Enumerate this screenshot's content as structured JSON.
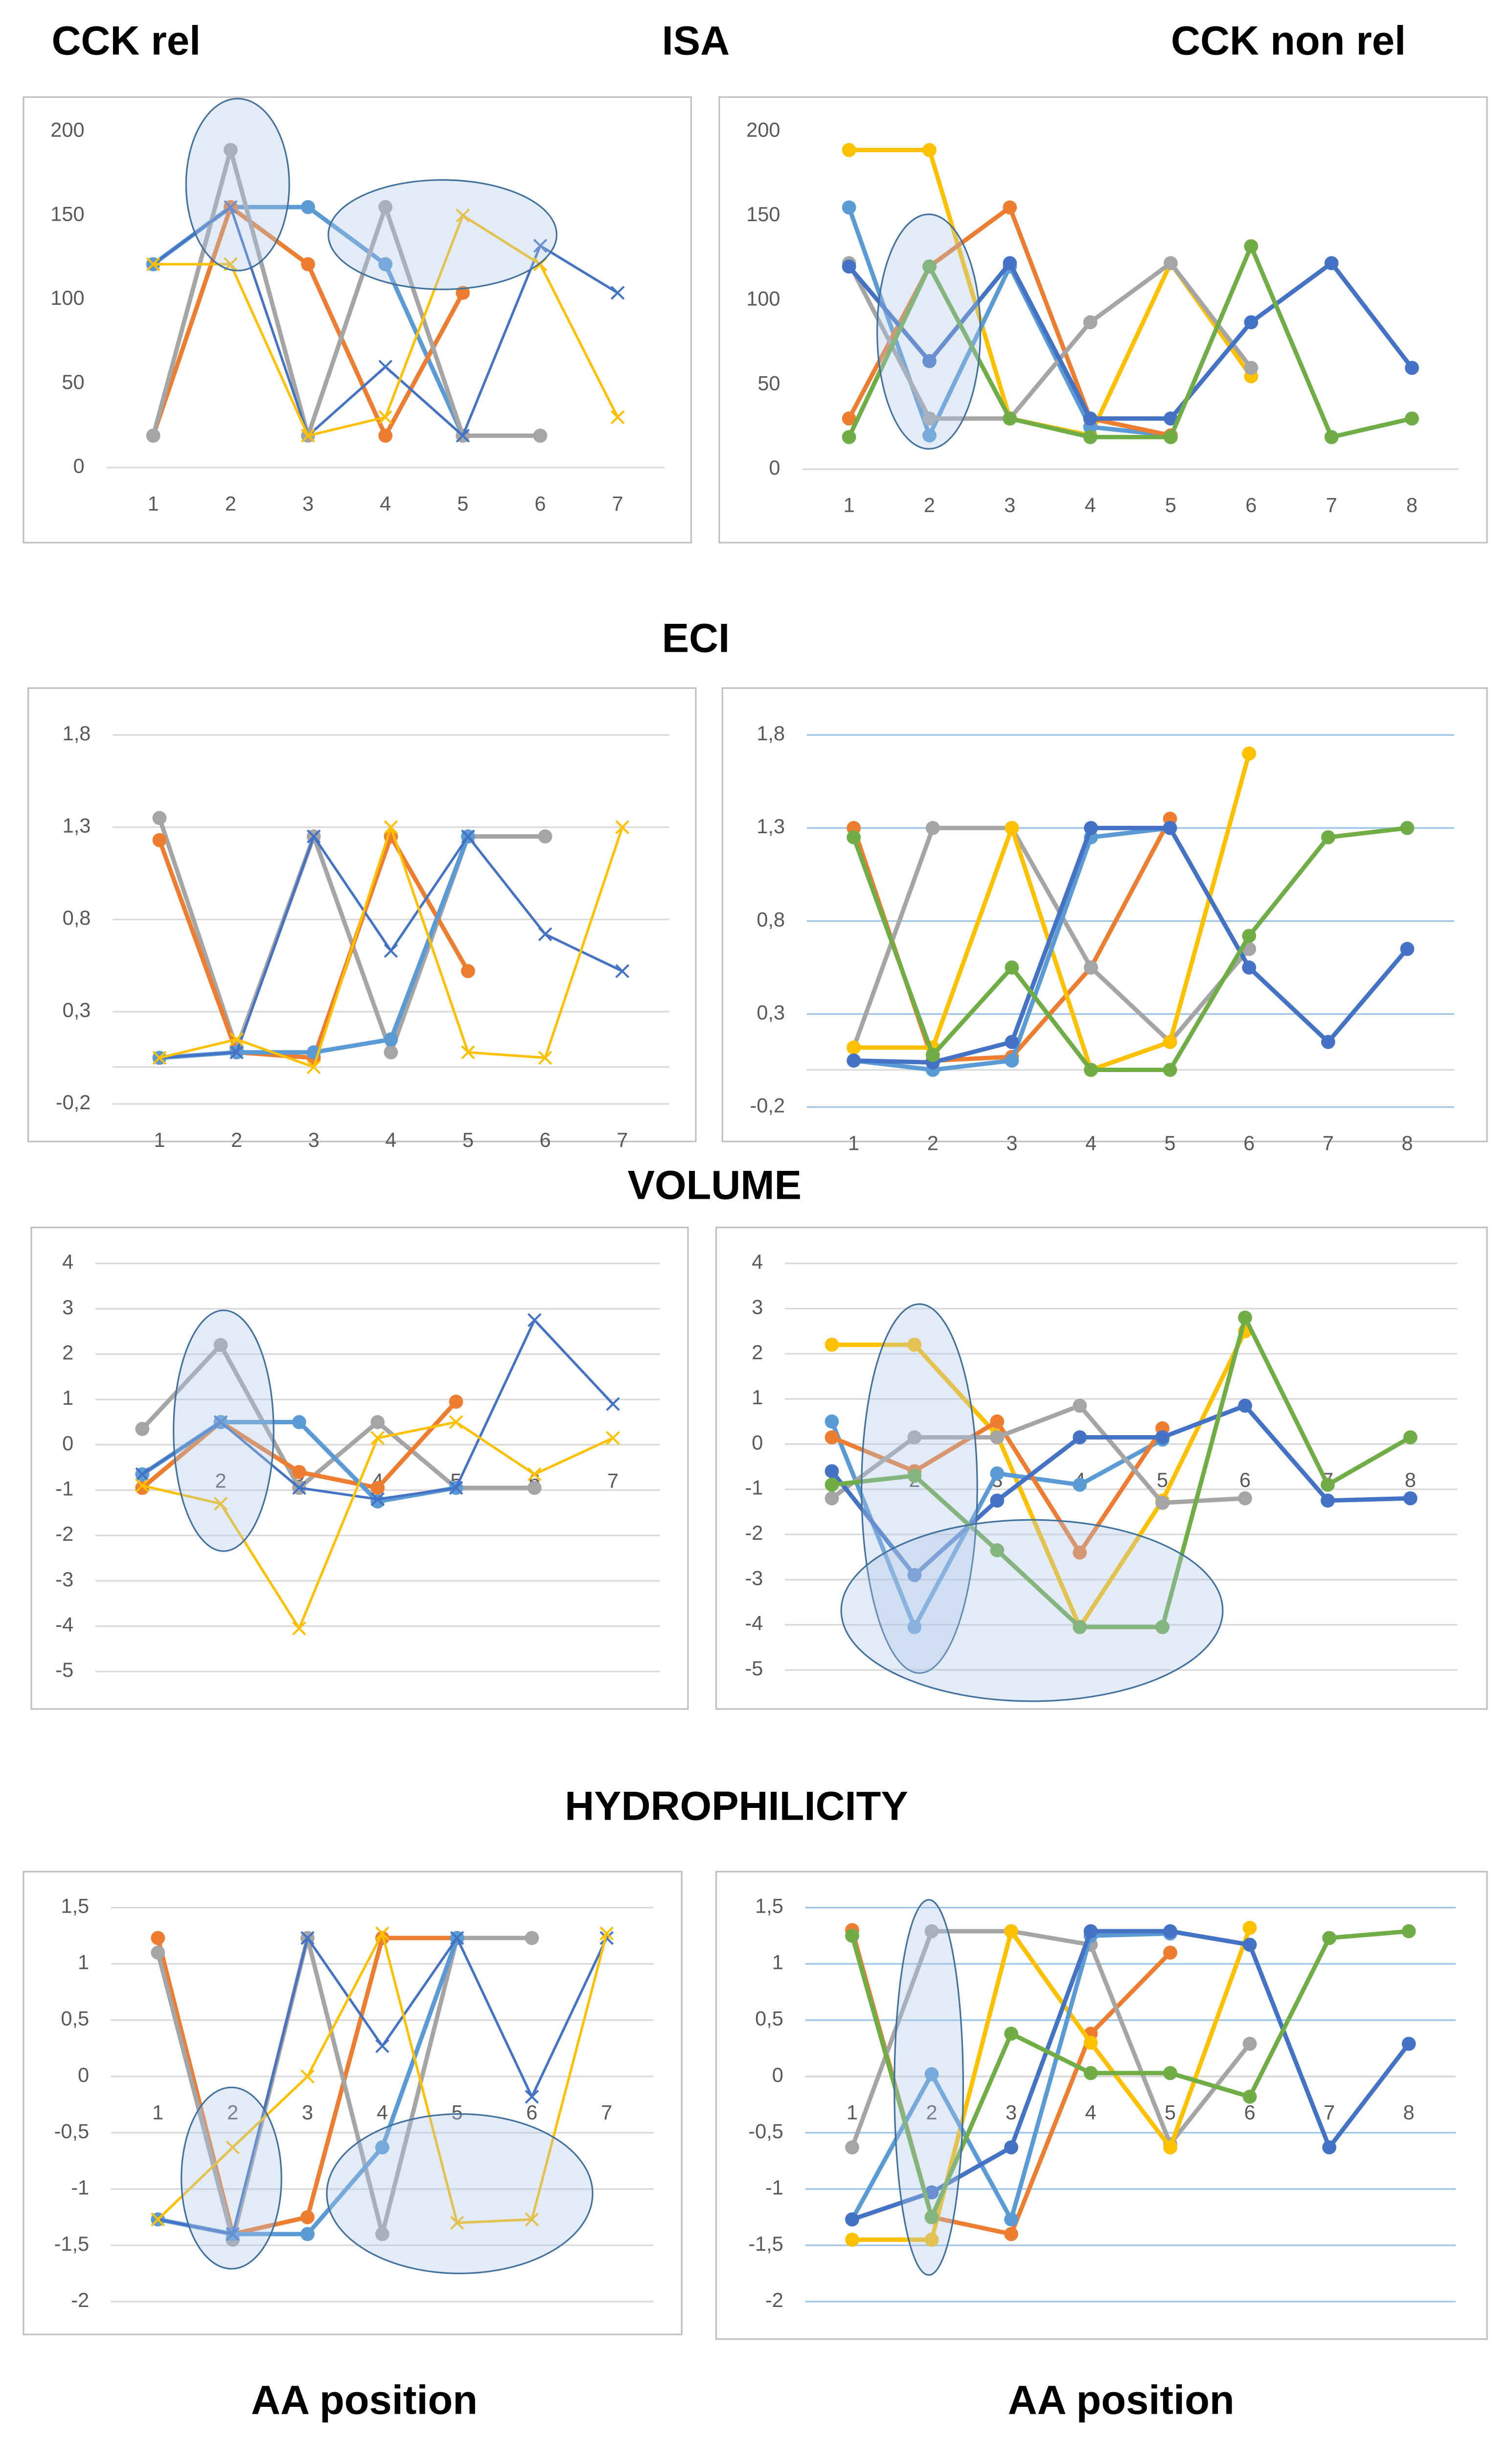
{
  "labels": [
    "CCK rel",
    "ISA",
    "CCK non rel",
    "ECI",
    "VOLUME",
    "HYDROPHILICITY",
    "AA position",
    "AA position"
  ],
  "chart_data": [
    {
      "type": "line",
      "x": [
        1,
        2,
        3,
        4,
        5,
        6,
        7
      ],
      "ylim": [
        0,
        200
      ],
      "yticks": [
        0,
        50,
        100,
        150,
        200
      ],
      "grid": false,
      "series": [
        {
          "color": "#5b9bd5",
          "marker": "circle",
          "values": [
            121,
            155,
            155,
            121,
            19,
            null,
            null
          ]
        },
        {
          "color": "#ed7d31",
          "marker": "circle",
          "values": [
            19,
            155,
            121,
            19,
            104,
            null,
            null
          ]
        },
        {
          "color": "#a5a5a5",
          "marker": "circle",
          "values": [
            19,
            189,
            19,
            155,
            19,
            19,
            null
          ]
        },
        {
          "color": "#4472c4",
          "marker": "x",
          "values": [
            121,
            155,
            19,
            60,
            19,
            132,
            104
          ]
        },
        {
          "color": "#ffc000",
          "marker": "x",
          "values": [
            121,
            121,
            19,
            30,
            150,
            121,
            30
          ]
        }
      ]
    },
    {
      "type": "line",
      "x": [
        1,
        2,
        3,
        4,
        5,
        6,
        7,
        8
      ],
      "ylim": [
        0,
        200
      ],
      "yticks": [
        0,
        50,
        100,
        150,
        200
      ],
      "grid": false,
      "series": [
        {
          "color": "#ffc000",
          "marker": "circle",
          "values": [
            189,
            189,
            30,
            20,
            122,
            55,
            null,
            null
          ]
        },
        {
          "color": "#5b9bd5",
          "marker": "circle",
          "values": [
            155,
            20,
            120,
            25,
            20,
            null,
            null,
            null
          ]
        },
        {
          "color": "#ed7d31",
          "marker": "circle",
          "values": [
            30,
            120,
            155,
            30,
            20,
            null,
            null,
            null
          ]
        },
        {
          "color": "#a5a5a5",
          "marker": "circle",
          "values": [
            122,
            30,
            30,
            87,
            122,
            60,
            null,
            null
          ]
        },
        {
          "color": "#4472c4",
          "marker": "circle",
          "values": [
            120,
            64,
            122,
            30,
            30,
            87,
            122,
            60
          ]
        },
        {
          "color": "#70ad47",
          "marker": "circle",
          "values": [
            19,
            120,
            30,
            19,
            19,
            132,
            19,
            30
          ]
        }
      ]
    },
    {
      "type": "line",
      "x": [
        1,
        2,
        3,
        4,
        5,
        6,
        7
      ],
      "ylim": [
        -0.2,
        1.8
      ],
      "yticks": [
        {
          "value": -0.2,
          "label": "-0,2"
        },
        {
          "value": 0.3,
          "label": "0,3"
        },
        {
          "value": 0.8,
          "label": "0,8"
        },
        {
          "value": 1.3,
          "label": "1,3"
        },
        {
          "value": 1.8,
          "label": "1,8"
        }
      ],
      "grid": true,
      "grid_color": "#d9d9d9",
      "series": [
        {
          "color": "#a5a5a5",
          "marker": "circle",
          "values": [
            1.35,
            0.1,
            1.25,
            0.08,
            1.25,
            1.25,
            null
          ]
        },
        {
          "color": "#ed7d31",
          "marker": "circle",
          "values": [
            1.23,
            0.08,
            0.05,
            1.25,
            0.52,
            null,
            null
          ]
        },
        {
          "color": "#5b9bd5",
          "marker": "circle",
          "values": [
            0.05,
            0.08,
            0.08,
            0.15,
            1.25,
            null,
            null
          ]
        },
        {
          "color": "#4472c4",
          "marker": "x",
          "values": [
            0.05,
            0.08,
            1.25,
            0.63,
            1.25,
            0.72,
            0.52
          ]
        },
        {
          "color": "#ffc000",
          "marker": "x",
          "values": [
            0.05,
            0.15,
            0.0,
            1.3,
            0.08,
            0.05,
            1.3
          ]
        }
      ]
    },
    {
      "type": "line",
      "x": [
        1,
        2,
        3,
        4,
        5,
        6,
        7,
        8
      ],
      "ylim": [
        -0.2,
        1.8
      ],
      "yticks": [
        {
          "value": -0.2,
          "label": "-0,2"
        },
        {
          "value": 0.3,
          "label": "0,3"
        },
        {
          "value": 0.8,
          "label": "0,8"
        },
        {
          "value": 1.3,
          "label": "1,3"
        },
        {
          "value": 1.8,
          "label": "1,8"
        }
      ],
      "grid": true,
      "grid_color": "#9dc3e6",
      "series": [
        {
          "color": "#ed7d31",
          "marker": "circle",
          "values": [
            1.3,
            0.05,
            0.07,
            0.55,
            1.35,
            null,
            null,
            null
          ]
        },
        {
          "color": "#a5a5a5",
          "marker": "circle",
          "values": [
            0.12,
            1.3,
            1.3,
            0.55,
            0.15,
            0.65,
            null,
            null
          ]
        },
        {
          "color": "#ffc000",
          "marker": "circle",
          "values": [
            0.12,
            0.12,
            1.3,
            0.0,
            0.15,
            1.7,
            null,
            null
          ]
        },
        {
          "color": "#5b9bd5",
          "marker": "circle",
          "values": [
            0.05,
            0.0,
            0.05,
            1.25,
            1.3,
            null,
            null,
            null
          ]
        },
        {
          "color": "#4472c4",
          "marker": "circle",
          "values": [
            0.05,
            0.04,
            0.15,
            1.3,
            1.3,
            0.55,
            0.15,
            0.65
          ]
        },
        {
          "color": "#70ad47",
          "marker": "circle",
          "values": [
            1.25,
            0.08,
            0.55,
            0.0,
            0.0,
            0.72,
            1.25,
            1.3
          ]
        }
      ]
    },
    {
      "type": "line",
      "x": [
        1,
        2,
        3,
        4,
        5,
        6,
        7
      ],
      "ylim": [
        -5,
        4
      ],
      "yticks": [
        -5,
        -4,
        -3,
        -2,
        -1,
        0,
        1,
        2,
        3,
        4
      ],
      "grid": true,
      "grid_color": "#d9d9d9",
      "series": [
        {
          "color": "#a5a5a5",
          "marker": "circle",
          "values": [
            0.35,
            2.2,
            -0.95,
            0.5,
            -0.95,
            -0.95,
            null
          ]
        },
        {
          "color": "#ed7d31",
          "marker": "circle",
          "values": [
            -0.95,
            0.5,
            -0.6,
            -0.95,
            0.95,
            null,
            null
          ]
        },
        {
          "color": "#5b9bd5",
          "marker": "circle",
          "values": [
            -0.65,
            0.5,
            0.5,
            -1.25,
            -0.95,
            null,
            null
          ]
        },
        {
          "color": "#4472c4",
          "marker": "x",
          "values": [
            -0.65,
            0.5,
            -0.95,
            -1.2,
            -0.95,
            2.75,
            0.9
          ]
        },
        {
          "color": "#ffc000",
          "marker": "x",
          "values": [
            -0.9,
            -1.3,
            -4.05,
            0.15,
            0.5,
            -0.65,
            0.15
          ]
        }
      ]
    },
    {
      "type": "line",
      "x": [
        1,
        2,
        3,
        4,
        5,
        6,
        7,
        8
      ],
      "ylim": [
        -5,
        4
      ],
      "yticks": [
        -5,
        -4,
        -3,
        -2,
        -1,
        0,
        1,
        2,
        3,
        4
      ],
      "grid": true,
      "grid_color": "#d9d9d9",
      "series": [
        {
          "color": "#ffc000",
          "marker": "circle",
          "values": [
            2.2,
            2.2,
            0.2,
            -4.05,
            -1.25,
            2.5,
            null,
            null
          ]
        },
        {
          "color": "#5b9bd5",
          "marker": "circle",
          "values": [
            0.5,
            -4.05,
            -0.65,
            -0.9,
            0.1,
            null,
            null,
            null
          ]
        },
        {
          "color": "#ed7d31",
          "marker": "circle",
          "values": [
            0.15,
            -0.6,
            0.5,
            -2.4,
            0.35,
            null,
            null,
            null
          ]
        },
        {
          "color": "#a5a5a5",
          "marker": "circle",
          "values": [
            -1.2,
            0.15,
            0.15,
            0.85,
            -1.3,
            -1.2,
            null,
            null
          ]
        },
        {
          "color": "#4472c4",
          "marker": "circle",
          "values": [
            -0.6,
            -2.9,
            -1.25,
            0.15,
            0.15,
            0.85,
            -1.25,
            -1.2
          ]
        },
        {
          "color": "#70ad47",
          "marker": "circle",
          "values": [
            -0.9,
            -0.7,
            -2.35,
            -4.05,
            -4.05,
            2.8,
            -0.9,
            0.15
          ]
        }
      ]
    },
    {
      "type": "line",
      "x": [
        1,
        2,
        3,
        4,
        5,
        6,
        7
      ],
      "ylim": [
        -2,
        1.5
      ],
      "yticks": [
        -2,
        {
          "value": -1.5,
          "label": "-1,5"
        },
        -1,
        {
          "value": -0.5,
          "label": "-0,5"
        },
        0,
        {
          "value": 0.5,
          "label": "0,5"
        },
        1,
        {
          "value": 1.5,
          "label": "1,5"
        }
      ],
      "grid": true,
      "grid_color": "#d9d9d9",
      "series": [
        {
          "color": "#ed7d31",
          "marker": "circle",
          "values": [
            1.23,
            -1.4,
            -1.25,
            1.23,
            1.23,
            null,
            null
          ]
        },
        {
          "color": "#a5a5a5",
          "marker": "circle",
          "values": [
            1.1,
            -1.45,
            1.23,
            -1.4,
            1.23,
            1.23,
            null
          ]
        },
        {
          "color": "#5b9bd5",
          "marker": "circle",
          "values": [
            -1.27,
            -1.4,
            -1.4,
            -0.63,
            1.23,
            null,
            null
          ]
        },
        {
          "color": "#4472c4",
          "marker": "x",
          "values": [
            -1.27,
            -1.4,
            1.23,
            0.27,
            1.23,
            -0.18,
            1.23
          ]
        },
        {
          "color": "#ffc000",
          "marker": "x",
          "values": [
            -1.27,
            -0.63,
            0.0,
            1.27,
            -1.3,
            -1.27,
            1.27
          ]
        }
      ]
    },
    {
      "type": "line",
      "x": [
        1,
        2,
        3,
        4,
        5,
        6,
        7,
        8
      ],
      "ylim": [
        -2,
        1.5
      ],
      "yticks": [
        -2,
        {
          "value": -1.5,
          "label": "-1,5"
        },
        -1,
        {
          "value": -0.5,
          "label": "-0,5"
        },
        0,
        {
          "value": 0.5,
          "label": "0,5"
        },
        1,
        {
          "value": 1.5,
          "label": "1,5"
        }
      ],
      "grid": true,
      "grid_color": "#9dc3e6",
      "series": [
        {
          "color": "#ed7d31",
          "marker": "circle",
          "values": [
            1.3,
            -1.25,
            -1.4,
            0.38,
            1.1,
            null,
            null,
            null
          ]
        },
        {
          "color": "#a5a5a5",
          "marker": "circle",
          "values": [
            -0.63,
            1.29,
            1.29,
            1.17,
            -0.6,
            0.29,
            null,
            null
          ]
        },
        {
          "color": "#ffc000",
          "marker": "circle",
          "values": [
            -1.45,
            -1.45,
            1.29,
            0.3,
            -0.63,
            1.32,
            null,
            null
          ]
        },
        {
          "color": "#5b9bd5",
          "marker": "circle",
          "values": [
            -1.27,
            0.02,
            -1.27,
            1.25,
            1.27,
            null,
            null,
            null
          ]
        },
        {
          "color": "#4472c4",
          "marker": "circle",
          "values": [
            -1.27,
            -1.03,
            -0.63,
            1.29,
            1.29,
            1.17,
            -0.63,
            0.29
          ]
        },
        {
          "color": "#70ad47",
          "marker": "circle",
          "values": [
            1.25,
            -1.25,
            0.38,
            0.03,
            0.03,
            -0.18,
            1.23,
            1.29
          ]
        }
      ]
    }
  ]
}
